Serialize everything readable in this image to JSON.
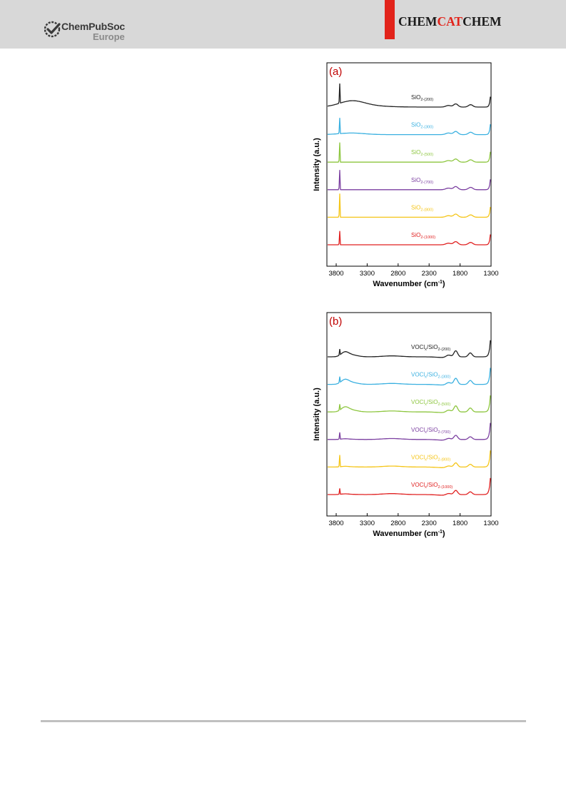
{
  "header": {
    "publisher_name": "ChemPubSoc",
    "publisher_sub": "Europe",
    "journal_title_left": "CHEM",
    "journal_title_mid": "CAT",
    "journal_title_right": "CHEM",
    "accent_color": "#e2231a",
    "header_bg": "#d8d8d8",
    "logo_icon": "checkmark-seal-icon"
  },
  "chart_data": [
    {
      "type": "line",
      "panel_label": "(a)",
      "xlabel_main": "Wavenumber (cm",
      "xlabel_sup": "-1",
      "xlabel_end": ")",
      "ylabel": "Intensity (a.u.)",
      "xlim": [
        3950,
        1300
      ],
      "xticks": [
        3800,
        3300,
        2800,
        2300,
        1800,
        1300
      ],
      "yticks_shown": false,
      "series": [
        {
          "name": "SiO",
          "sub": "2-(200)",
          "color": "#222222",
          "baseline": 5,
          "profile": "broad200",
          "sharp": 1.0
        },
        {
          "name": "SiO",
          "sub": "2-(300)",
          "color": "#3ab0e0",
          "baseline": 4,
          "profile": "broad300",
          "sharp": 0.8
        },
        {
          "name": "SiO",
          "sub": "2-(500)",
          "color": "#8dc63f",
          "baseline": 3,
          "profile": "flat",
          "sharp": 1.0
        },
        {
          "name": "SiO",
          "sub": "2-(700)",
          "color": "#7b3fa0",
          "baseline": 2,
          "profile": "flat",
          "sharp": 1.0
        },
        {
          "name": "SiO",
          "sub": "2-(800)",
          "color": "#f5c518",
          "baseline": 1,
          "profile": "flat",
          "sharp": 1.2
        },
        {
          "name": "SiO",
          "sub": "2-(1000)",
          "color": "#e02020",
          "baseline": 0,
          "profile": "flat",
          "sharp": 0.7
        }
      ]
    },
    {
      "type": "line",
      "panel_label": "(b)",
      "xlabel_main": "Wavenumber (cm",
      "xlabel_sup": "-1",
      "xlabel_end": ")",
      "ylabel": "Intensity (a.u.)",
      "xlim": [
        3950,
        1300
      ],
      "xticks": [
        3800,
        3300,
        2800,
        2300,
        1800,
        1300
      ],
      "yticks_shown": false,
      "series": [
        {
          "name": "VOCl",
          "sub_x": "x",
          "name2": "/SiO",
          "sub": "2-(200)",
          "color": "#222222",
          "baseline": 5,
          "profile": "vanadia_strong",
          "sharp": 0.3
        },
        {
          "name": "VOCl",
          "sub_x": "x",
          "name2": "/SiO",
          "sub": "2-(300)",
          "color": "#3ab0e0",
          "baseline": 4,
          "profile": "vanadia_strong",
          "sharp": 0.3
        },
        {
          "name": "VOCl",
          "sub_x": "x",
          "name2": "/SiO",
          "sub": "2-(500)",
          "color": "#8dc63f",
          "baseline": 3,
          "profile": "vanadia_strong",
          "sharp": 0.3
        },
        {
          "name": "VOCl",
          "sub_x": "x",
          "name2": "/SiO",
          "sub": "2-(700)",
          "color": "#7b3fa0",
          "baseline": 2,
          "profile": "vanadia_weak",
          "sharp": 0.35
        },
        {
          "name": "VOCl",
          "sub_x": "x",
          "name2": "/SiO",
          "sub": "2-(800)",
          "color": "#f5c518",
          "baseline": 1,
          "profile": "vanadia_weak",
          "sharp": 0.6
        },
        {
          "name": "VOCl",
          "sub_x": "x",
          "name2": "/SiO",
          "sub": "2-(1000)",
          "color": "#e02020",
          "baseline": 0,
          "profile": "vanadia_weak",
          "sharp": 0.3
        }
      ]
    }
  ]
}
